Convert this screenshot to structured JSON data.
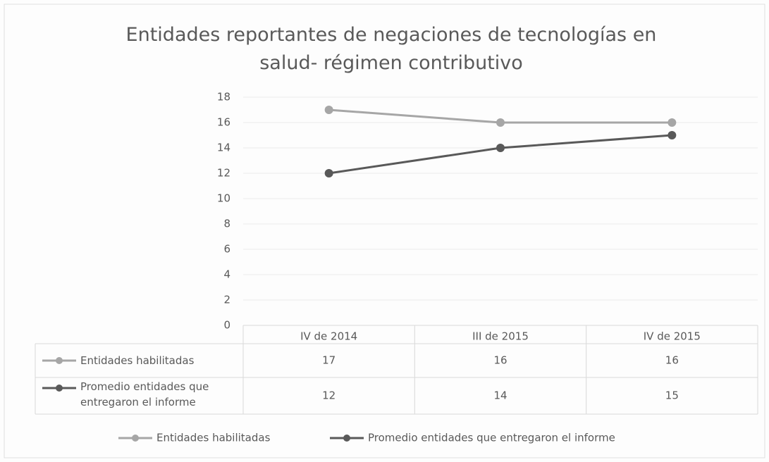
{
  "chart_data": {
    "type": "line",
    "title": "Entidades reportantes de negaciones de tecnologías en salud- régimen contributivo",
    "categories": [
      "IV de 2014",
      "III de 2015",
      "IV de 2015"
    ],
    "series": [
      {
        "name": "Entidades habilitadas",
        "color": "#a6a6a6",
        "values": [
          17,
          16,
          16
        ]
      },
      {
        "name": "Promedio entidades que entregaron el informe",
        "color": "#595959",
        "values": [
          12,
          14,
          15
        ]
      }
    ],
    "ylim": [
      0,
      18
    ],
    "yticks": [
      0,
      2,
      4,
      6,
      8,
      10,
      12,
      14,
      16,
      18
    ],
    "grid": true,
    "legend": "bottom",
    "data_table": true
  }
}
